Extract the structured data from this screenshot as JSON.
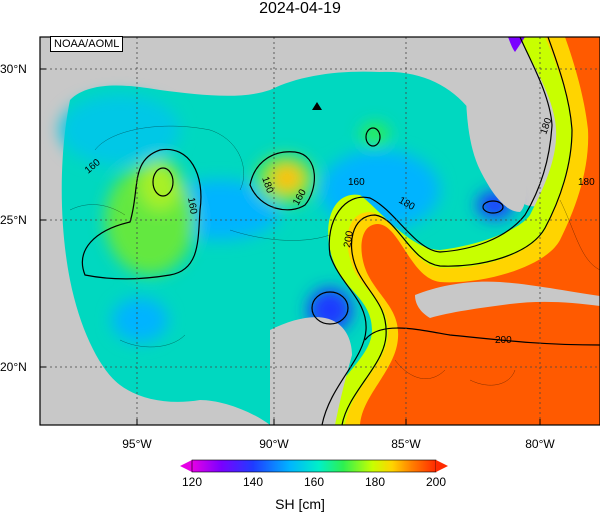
{
  "title": "2024-04-19",
  "credit": "NOAA/AOML",
  "variable": "SH [cm]",
  "lat_labels": [
    "30°N",
    "25°N",
    "20°N"
  ],
  "lon_labels": [
    "95°W",
    "90°W",
    "85°W",
    "80°W"
  ],
  "contour_labels": [
    "160",
    "160",
    "180",
    "160",
    "160",
    "180",
    "200",
    "180",
    "200",
    "180"
  ],
  "colorbar": {
    "ticks": [
      "120",
      "140",
      "160",
      "180",
      "200"
    ],
    "colors": [
      "#e600e6",
      "#7a00ff",
      "#1f3bff",
      "#00b4ff",
      "#00f0c8",
      "#2ef050",
      "#c8ff00",
      "#ffd400",
      "#ff8000",
      "#ff2a00"
    ]
  },
  "land_color": "#c8c8c8",
  "marker": "buoy-triangle"
}
